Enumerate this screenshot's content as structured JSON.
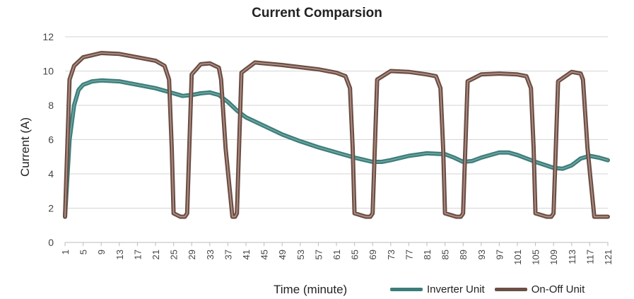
{
  "chart_data": {
    "type": "line",
    "title": "Current Comparsion",
    "xlabel": "Time (minute)",
    "ylabel": "Current (A)",
    "ylim": [
      0,
      12
    ],
    "yticks": [
      0,
      2,
      4,
      6,
      8,
      10,
      12
    ],
    "xlim": [
      1,
      121
    ],
    "xticks": [
      1,
      5,
      9,
      13,
      17,
      21,
      25,
      29,
      33,
      37,
      41,
      45,
      49,
      53,
      57,
      61,
      65,
      69,
      73,
      77,
      81,
      85,
      89,
      93,
      97,
      101,
      105,
      109,
      113,
      117,
      121
    ],
    "grid": true,
    "legend_position": "bottom-right",
    "series": [
      {
        "name": "Inverter Unit",
        "color": "#3c7d7a",
        "x": [
          1,
          2,
          3,
          4,
          5,
          7,
          9,
          13,
          17,
          21,
          25,
          27,
          29,
          31,
          33,
          35,
          37,
          39,
          41,
          45,
          49,
          53,
          57,
          61,
          65,
          69,
          71,
          73,
          77,
          81,
          85,
          87,
          89,
          91,
          93,
          97,
          99,
          101,
          105,
          109,
          111,
          113,
          115,
          117,
          119,
          121
        ],
        "y": [
          1.5,
          6.0,
          8.0,
          8.9,
          9.2,
          9.4,
          9.45,
          9.4,
          9.2,
          9.0,
          8.7,
          8.55,
          8.6,
          8.7,
          8.75,
          8.6,
          8.2,
          7.7,
          7.3,
          6.8,
          6.3,
          5.9,
          5.55,
          5.25,
          4.95,
          4.7,
          4.7,
          4.8,
          5.05,
          5.2,
          5.15,
          4.95,
          4.7,
          4.75,
          4.95,
          5.25,
          5.25,
          5.1,
          4.7,
          4.35,
          4.3,
          4.5,
          4.9,
          5.05,
          4.95,
          4.8
        ]
      },
      {
        "name": "On-Off Unit",
        "color": "#6b4e45",
        "x": [
          1,
          1.5,
          2,
          3,
          5,
          9,
          13,
          17,
          21,
          23,
          24,
          24.6,
          25,
          26.5,
          27.5,
          28,
          29,
          31,
          33,
          35,
          35.5,
          36.5,
          38,
          38.6,
          39,
          40,
          43,
          49,
          57,
          61,
          63,
          64,
          64.6,
          65,
          67.5,
          68.5,
          69,
          70,
          73,
          77,
          81,
          83,
          84,
          84.6,
          85,
          87.5,
          88.5,
          89,
          90,
          93,
          97,
          101,
          103,
          104,
          104.6,
          105,
          107.5,
          108.5,
          109,
          110,
          113,
          115,
          115.5,
          116.5,
          118,
          121
        ],
        "y": [
          1.5,
          5.5,
          9.5,
          10.3,
          10.8,
          11.05,
          11.0,
          10.8,
          10.6,
          10.3,
          9.5,
          5.5,
          1.7,
          1.5,
          1.5,
          1.7,
          9.8,
          10.4,
          10.45,
          10.2,
          9.5,
          5.5,
          1.5,
          1.5,
          1.7,
          9.9,
          10.5,
          10.35,
          10.1,
          9.9,
          9.7,
          9.0,
          5.5,
          1.7,
          1.5,
          1.5,
          1.7,
          9.5,
          10.0,
          9.95,
          9.8,
          9.7,
          9.0,
          5.5,
          1.7,
          1.5,
          1.5,
          1.7,
          9.4,
          9.8,
          9.85,
          9.8,
          9.7,
          9.0,
          5.5,
          1.7,
          1.5,
          1.5,
          1.7,
          9.4,
          9.95,
          9.85,
          9.5,
          5.5,
          1.5,
          1.5
        ]
      }
    ]
  }
}
